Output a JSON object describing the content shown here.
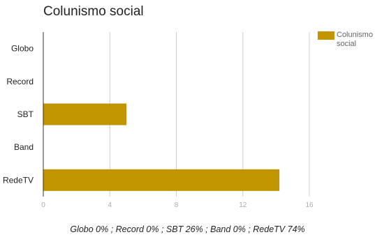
{
  "chart_data": {
    "type": "bar",
    "orientation": "horizontal",
    "title": "Colunismo social",
    "categories": [
      "Globo",
      "Record",
      "SBT",
      "Band",
      "RedeTV"
    ],
    "series": [
      {
        "name": "Colunismo social",
        "color": "#c29500",
        "values": [
          0,
          0,
          5,
          0,
          14.2
        ]
      }
    ],
    "xlim": [
      0,
      16
    ],
    "xticks": [
      "0",
      "4",
      "8",
      "12",
      "16"
    ],
    "grid": true,
    "legend_position": "right"
  },
  "footnote": "Globo 0% ; Record 0% ; SBT 26% ; Band 0% ; RedeTV 74%"
}
